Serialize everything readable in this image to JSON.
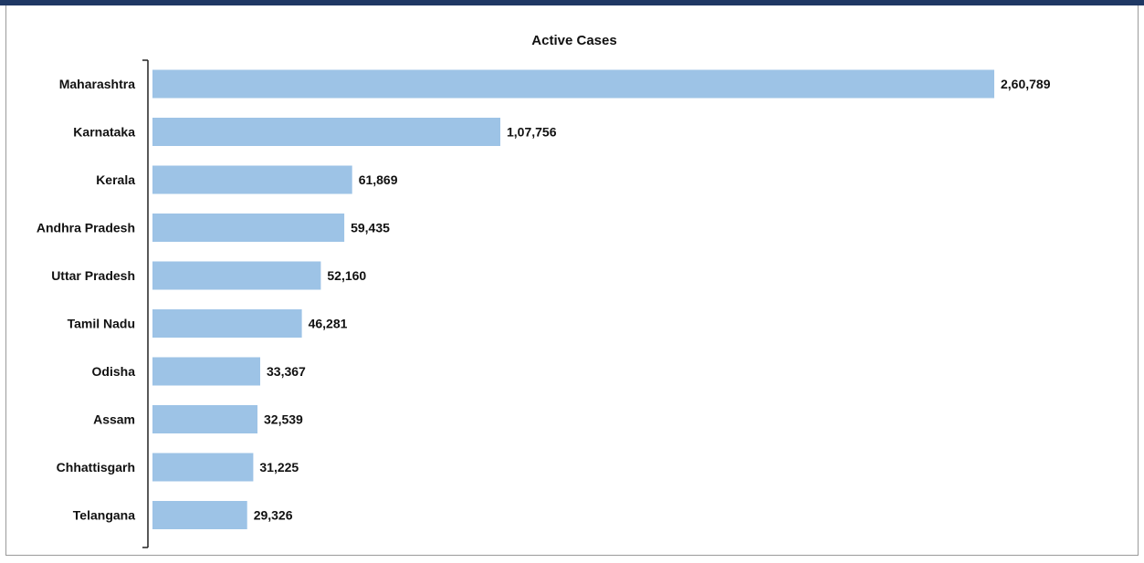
{
  "chart_data": {
    "type": "bar",
    "orientation": "horizontal",
    "title": "Active Cases",
    "xlabel": "",
    "ylabel": "",
    "categories": [
      "Maharashtra",
      "Karnataka",
      "Kerala",
      "Andhra Pradesh",
      "Uttar Pradesh",
      "Tamil Nadu",
      "Odisha",
      "Assam",
      "Chhattisgarh",
      "Telangana"
    ],
    "values": [
      260789,
      107756,
      61869,
      59435,
      52160,
      46281,
      33367,
      32539,
      31225,
      29326
    ],
    "data_labels": [
      "2,60,789",
      "1,07,756",
      "61,869",
      "59,435",
      "52,160",
      "46,281",
      "33,367",
      "32,539",
      "31,225",
      "29,326"
    ],
    "xlim": [
      0,
      260789
    ],
    "grid": false,
    "legend": "none",
    "colors": {
      "bar": "#9dc3e6",
      "header_band": "#1f3864"
    }
  }
}
